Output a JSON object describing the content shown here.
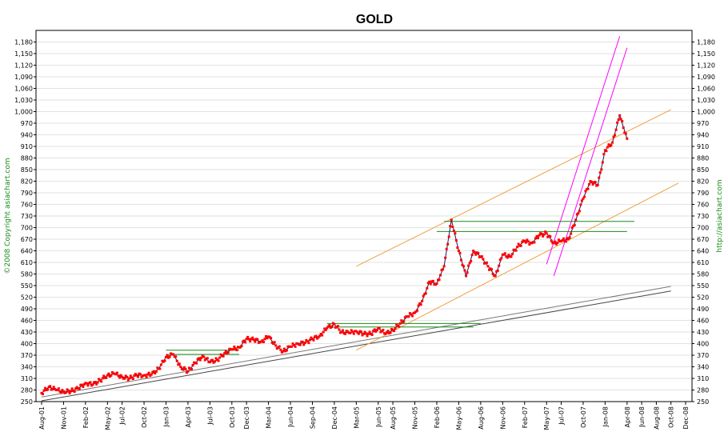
{
  "chart_data": {
    "type": "line",
    "title": "GOLD",
    "copyright": "©2008 Copyright asiachart.com",
    "url": "http://asiachart.com",
    "ylim": [
      250,
      1210
    ],
    "y_ticks": [
      "250",
      "280",
      "310",
      "340",
      "370",
      "400",
      "430",
      "460",
      "490",
      "520",
      "550",
      "580",
      "610",
      "640",
      "670",
      "700",
      "730",
      "760",
      "790",
      "820",
      "850",
      "880",
      "910",
      "940",
      "970",
      "1,000",
      "1,030",
      "1,060",
      "1,090",
      "1,120",
      "1,150",
      "1,180"
    ],
    "x_ticks": [
      "Aug-01",
      "Nov-01",
      "Feb-02",
      "May-02",
      "Jul-02",
      "Oct-02",
      "Jan-03",
      "Apr-03",
      "Jul-03",
      "Oct-03",
      "Dec-03",
      "Mar-04",
      "Jun-04",
      "Sep-04",
      "Dec-04",
      "Mar-05",
      "Jun-05",
      "Aug-05",
      "Nov-05",
      "Feb-06",
      "May-06",
      "Aug-06",
      "Nov-06",
      "Feb-07",
      "May-07",
      "Jul-07",
      "Oct-07",
      "Jan-08",
      "Apr-08",
      "Jun-08",
      "Aug-08",
      "Oct-08",
      "Dec-08"
    ],
    "grid": true,
    "series": [
      {
        "name": "",
        "color": "#ff0000",
        "x": [
          "Aug-01",
          "Sep-01",
          "Oct-01",
          "Nov-01",
          "Dec-01",
          "Jan-02",
          "Feb-02",
          "Mar-02",
          "Apr-02",
          "May-02",
          "Jun-02",
          "Jul-02",
          "Aug-02",
          "Sep-02",
          "Oct-02",
          "Nov-02",
          "Dec-02",
          "Jan-03",
          "Feb-03",
          "Mar-03",
          "Apr-03",
          "May-03",
          "Jun-03",
          "Jul-03",
          "Aug-03",
          "Sep-03",
          "Oct-03",
          "Nov-03",
          "Dec-03",
          "Jan-04",
          "Feb-04",
          "Mar-04",
          "Apr-04",
          "May-04",
          "Jun-04",
          "Jul-04",
          "Aug-04",
          "Sep-04",
          "Oct-04",
          "Nov-04",
          "Dec-04",
          "Jan-05",
          "Feb-05",
          "Mar-05",
          "Apr-05",
          "May-05",
          "Jun-05",
          "Jul-05",
          "Aug-05",
          "Sep-05",
          "Oct-05",
          "Nov-05",
          "Dec-05",
          "Jan-06",
          "Feb-06",
          "Mar-06",
          "Apr-06",
          "May-06",
          "Jun-06",
          "Jul-06",
          "Aug-06",
          "Sep-06",
          "Oct-06",
          "Nov-06",
          "Dec-06",
          "Jan-07",
          "Feb-07",
          "Mar-07",
          "Apr-07",
          "May-07",
          "Jun-07",
          "Jul-07",
          "Aug-07",
          "Sep-07",
          "Oct-07",
          "Nov-07",
          "Dec-07",
          "Jan-08",
          "Feb-08",
          "Mar-08",
          "Apr-08"
        ],
        "values": [
          272,
          288,
          280,
          276,
          277,
          284,
          298,
          294,
          305,
          318,
          322,
          314,
          310,
          318,
          318,
          320,
          335,
          365,
          372,
          340,
          328,
          350,
          368,
          352,
          358,
          375,
          385,
          390,
          412,
          410,
          405,
          418,
          395,
          380,
          392,
          400,
          402,
          412,
          420,
          440,
          450,
          430,
          428,
          432,
          425,
          425,
          440,
          425,
          435,
          452,
          470,
          480,
          510,
          560,
          555,
          600,
          720,
          640,
          575,
          640,
          625,
          600,
          575,
          630,
          625,
          650,
          665,
          660,
          680,
          685,
          660,
          665,
          670,
          720,
          775,
          820,
          810,
          900,
          920,
          990,
          930
        ]
      }
    ],
    "annotations": {
      "support_lines": [
        "black trendline pair from Aug-01 to Oct-08"
      ],
      "channel_orange": true,
      "channel_magenta": true,
      "horizontal_green_levels": [
        383,
        372,
        452,
        443,
        716,
        690
      ]
    }
  }
}
